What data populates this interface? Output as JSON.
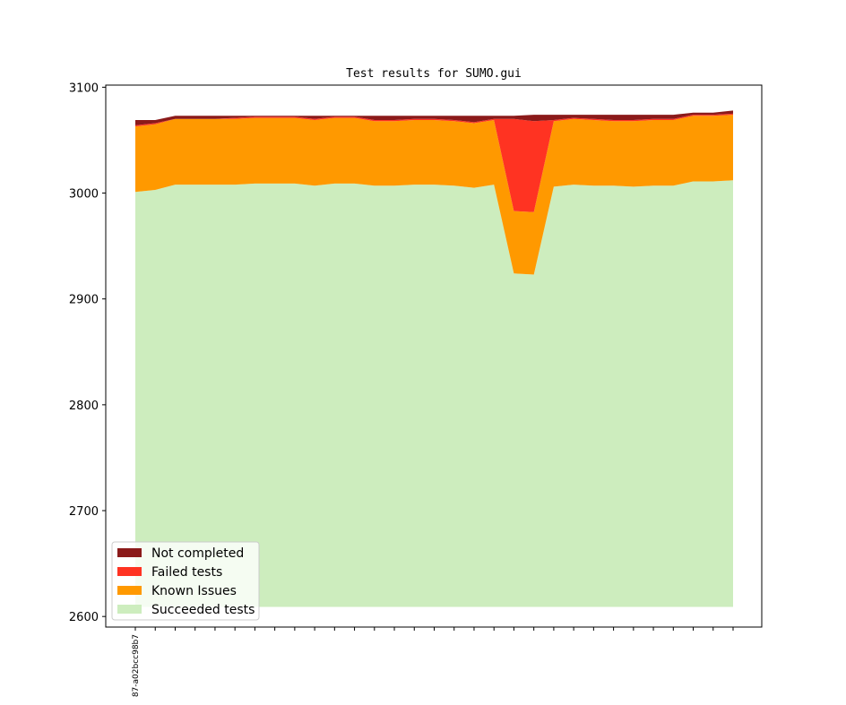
{
  "chart_data": {
    "type": "area",
    "title": "Test results for SUMO.gui",
    "xlabel": "",
    "ylabel": "",
    "ylim": [
      2590,
      3102
    ],
    "yticks": [
      2600,
      2700,
      2800,
      2900,
      3000,
      3100
    ],
    "baseline": 2609,
    "x_tick_labels": [
      "87-a02bcc98b7"
    ],
    "stack_order": [
      "Succeeded tests",
      "Known Issues",
      "Failed tests",
      "Not completed"
    ],
    "series": [
      {
        "name": "Succeeded tests",
        "color": "#cdedbe",
        "values": [
          3001,
          3003,
          3008,
          3008,
          3008,
          3008,
          3009,
          3009,
          3009,
          3007,
          3009,
          3009,
          3007,
          3007,
          3008,
          3008,
          3007,
          3005,
          3008,
          2924,
          2923,
          3006,
          3008,
          3007,
          3007,
          3006,
          3007,
          3007,
          3011,
          3011,
          3012
        ]
      },
      {
        "name": "Known Issues",
        "color": "#ff9900",
        "values": [
          62,
          62,
          62,
          62,
          62,
          62,
          62,
          62,
          62,
          62,
          62,
          62,
          61,
          61,
          61,
          61,
          61,
          61,
          61,
          59,
          59,
          62,
          62,
          62,
          61,
          62,
          62,
          62,
          62,
          62,
          62
        ]
      },
      {
        "name": "Failed tests",
        "color": "#ff3322",
        "values": [
          1,
          1,
          0,
          0,
          0,
          1,
          1,
          1,
          1,
          1,
          1,
          1,
          1,
          1,
          1,
          1,
          1,
          1,
          1,
          87,
          86,
          1,
          1,
          1,
          1,
          1,
          1,
          1,
          1,
          1,
          1
        ]
      },
      {
        "name": "Not completed",
        "color": "#8b1a1a",
        "values": [
          5,
          3,
          3,
          3,
          3,
          2,
          1,
          1,
          1,
          3,
          1,
          1,
          4,
          4,
          3,
          3,
          4,
          6,
          3,
          3,
          6,
          5,
          3,
          4,
          5,
          5,
          4,
          4,
          2,
          2,
          3
        ]
      }
    ],
    "legend": {
      "position": "lower-left",
      "entries": [
        "Not completed",
        "Failed tests",
        "Known Issues",
        "Succeeded tests"
      ]
    },
    "grid": false
  }
}
